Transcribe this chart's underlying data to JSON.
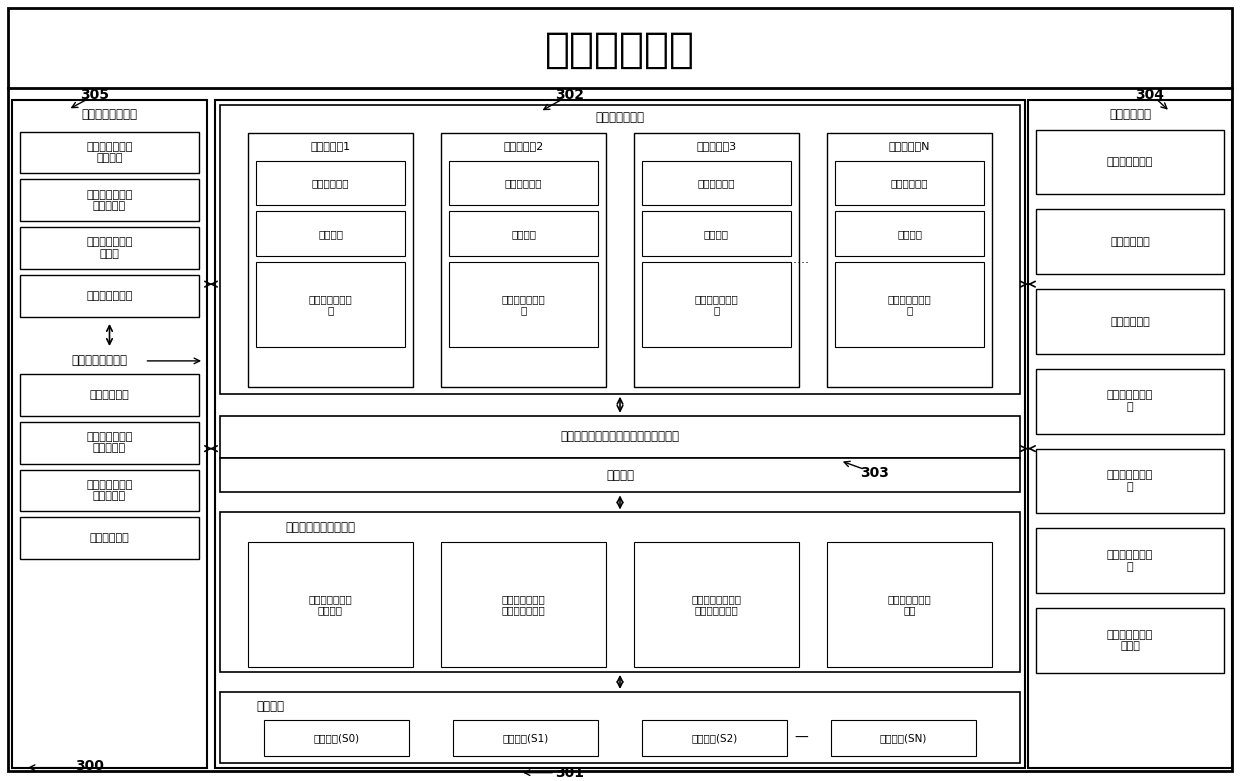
{
  "title": "虚拟库存方案",
  "bg_color": "#ffffff",
  "left_panel_label": "虚拟库存监控模块",
  "left_monitor_boxes": [
    "扣减虚拟库存成\n功率统计",
    "虚拟库存调拨与\n回收频繁率",
    "虚拟库存库存状\n况查询",
    "日志查询与分析"
  ],
  "left_config_label": "后台参数设置模块",
  "left_config_boxes": [
    "安全库存设置",
    "虚拟库存分仓策\n略参数设置",
    "虚拟库存管理策\n略参数设置",
    "任务调度设置"
  ],
  "right_panel_label": "后台管理模块",
  "right_boxes": [
    "虚拟库存初始化",
    "特殊入库处理",
    "特殊出库处理",
    "虚拟库存补货处\n理",
    "虚拟库存回收处\n理",
    "虚拟库存例行检\n查",
    "虚拟库存分仓计\n划管理"
  ],
  "app_cluster_label": "应用服务器集群",
  "app_servers": [
    "应用服务器1",
    "应用服务器2",
    "应用服务器3",
    "应用服务器N"
  ],
  "app_server_sub_boxes": [
    [
      "订单明细排序",
      "订单队列",
      "轮循扣减虚拟库\n存"
    ],
    [
      "订单明细排序",
      "订单队列",
      "轮循扣减虚拟库\n存"
    ],
    [
      "订单明细排序",
      "订单队列",
      "轮循扣减虚拟库\n存"
    ],
    [
      "订单明细排序",
      "订单队列",
      "轮循扣减虚拟库\n存"
    ]
  ],
  "middle_bar_label": "订单队列监控，动态虚拟库存分仓模块",
  "data_layer_label": "数据库层",
  "transaction_label": "虚拟库存相关事务处理",
  "transaction_boxes": [
    "虚拟库存初始化\n存储过程",
    "虚拟库存定时例\n行检查存储过程",
    "虚拟库存动态调拨\n与回收存储过程",
    "虚拟库存分仓储\n过程"
  ],
  "virtual_stock_label": "虚拟库存",
  "virtual_stock_boxes": [
    "预留库存(S0)",
    "虚拟库存(S1)",
    "虚拟库存(S2)",
    "虚拟库存(SN)"
  ],
  "label_300": "300",
  "label_301": "301",
  "label_302": "302",
  "label_303": "303",
  "label_304": "304",
  "label_305": "305"
}
